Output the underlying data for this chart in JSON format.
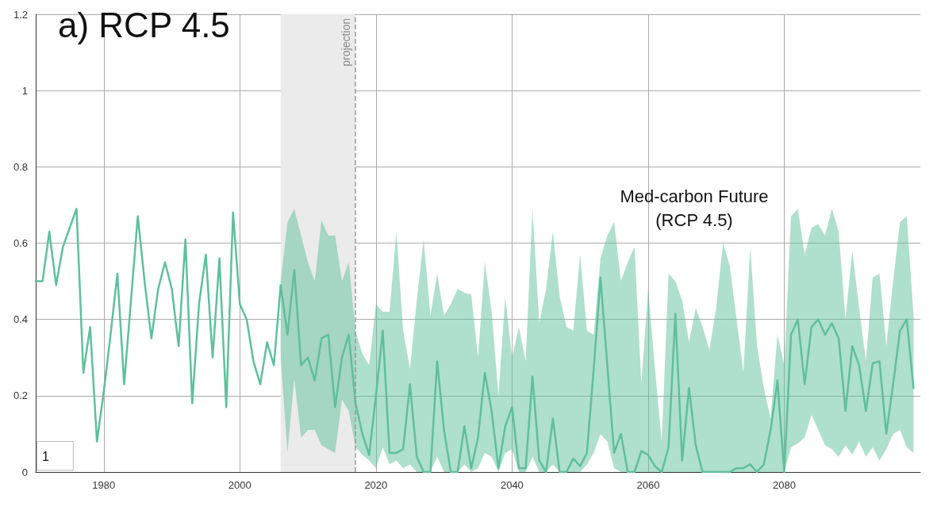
{
  "chart_data": {
    "type": "line",
    "title": "a) RCP 4.5",
    "annotations": [
      "Med-carbon Future\n(RCP 4.5)",
      "1"
    ],
    "x": [
      1970,
      1971,
      1972,
      1973,
      1974,
      1975,
      1976,
      1977,
      1978,
      1979,
      1980,
      1981,
      1982,
      1983,
      1984,
      1985,
      1986,
      1987,
      1988,
      1989,
      1990,
      1991,
      1992,
      1993,
      1994,
      1995,
      1996,
      1997,
      1998,
      1999,
      2000,
      2001,
      2002,
      2003,
      2004,
      2005,
      2006,
      2007,
      2008,
      2009,
      2010,
      2011,
      2012,
      2013,
      2014,
      2015,
      2016,
      2017,
      2018,
      2019,
      2020,
      2021,
      2022,
      2023,
      2024,
      2025,
      2026,
      2027,
      2028,
      2029,
      2030,
      2031,
      2032,
      2033,
      2034,
      2035,
      2036,
      2037,
      2038,
      2039,
      2040,
      2041,
      2042,
      2043,
      2044,
      2045,
      2046,
      2047,
      2048,
      2049,
      2050,
      2051,
      2052,
      2053,
      2054,
      2055,
      2056,
      2057,
      2058,
      2059,
      2060,
      2061,
      2062,
      2063,
      2064,
      2065,
      2066,
      2067,
      2068,
      2069,
      2070,
      2071,
      2072,
      2073,
      2074,
      2075,
      2076,
      2077,
      2078,
      2079,
      2080,
      2081,
      2082,
      2083,
      2084,
      2085,
      2086,
      2087,
      2088,
      2089,
      2090,
      2091,
      2092,
      2093,
      2094,
      2095,
      2096,
      2097,
      2098,
      2099
    ],
    "series": [
      {
        "color": "#5fbf9c",
        "values": [
          0.5,
          0.5,
          0.63,
          0.49,
          0.59,
          0.64,
          0.69,
          0.26,
          0.38,
          0.08,
          0.21,
          0.36,
          0.52,
          0.23,
          0.45,
          0.67,
          0.5,
          0.35,
          0.48,
          0.55,
          0.48,
          0.33,
          0.61,
          0.18,
          0.44,
          0.57,
          0.3,
          0.56,
          0.17,
          0.68,
          0.44,
          0.4,
          0.29,
          0.23,
          0.34,
          0.28,
          0.49,
          0.36,
          0.53,
          0.28,
          0.3,
          0.24,
          0.35,
          0.36,
          0.17,
          0.3,
          0.36,
          0.18,
          0.1,
          0.045,
          0.2,
          0.37,
          0.05,
          0.05,
          0.06,
          0.23,
          0.04,
          0,
          0,
          0.29,
          0.11,
          0,
          0,
          0.12,
          0.01,
          0.09,
          0.26,
          0.16,
          0.01,
          0.12,
          0.17,
          0.01,
          0.01,
          0.25,
          0.03,
          0,
          0.14,
          0,
          0,
          0.035,
          0.015,
          0.05,
          0.27,
          0.51,
          0.28,
          0.05,
          0.1,
          0,
          0,
          0.055,
          0.045,
          0.015,
          0,
          0.065,
          0.415,
          0.03,
          0.22,
          0.07,
          0,
          0,
          0,
          0,
          0,
          0.01,
          0.01,
          0.02,
          0,
          0.02,
          0.11,
          0.24,
          0,
          0.36,
          0.4,
          0.23,
          0.38,
          0.4,
          0.36,
          0.39,
          0.35,
          0.16,
          0.33,
          0.28,
          0.16,
          0.285,
          0.29,
          0.1,
          0.23,
          0.37,
          0.4,
          0.22
        ],
        "upper": [
          null,
          null,
          null,
          null,
          null,
          null,
          null,
          null,
          null,
          null,
          null,
          null,
          null,
          null,
          null,
          null,
          null,
          null,
          null,
          null,
          null,
          null,
          null,
          null,
          null,
          null,
          null,
          null,
          null,
          null,
          null,
          null,
          null,
          null,
          null,
          null,
          0.5,
          0.655,
          0.69,
          0.62,
          0.55,
          0.5,
          0.66,
          0.62,
          0.62,
          0.5,
          0.55,
          0.37,
          0.31,
          0.28,
          0.44,
          0.42,
          0.42,
          0.63,
          0.37,
          0.27,
          0.45,
          0.61,
          0.41,
          0.52,
          0.41,
          0.44,
          0.48,
          0.47,
          0.465,
          0.3,
          0.55,
          0.42,
          0.2,
          0.46,
          0.3,
          0.38,
          0.29,
          0.69,
          0.39,
          0.48,
          0.63,
          0.46,
          0.38,
          0.37,
          0.57,
          0.37,
          0.36,
          0.56,
          0.62,
          0.655,
          0.5,
          0.55,
          0.59,
          0.23,
          0.48,
          0.27,
          0.08,
          0.52,
          0.5,
          0.45,
          0.34,
          0.43,
          0.38,
          0.32,
          0.43,
          0.6,
          0.54,
          0.4,
          0.26,
          0.59,
          0.33,
          0.22,
          0.14,
          0.36,
          0.28,
          0.67,
          0.69,
          0.57,
          0.64,
          0.65,
          0.62,
          0.69,
          0.63,
          0.4,
          0.58,
          0.43,
          0.29,
          0.51,
          0.52,
          0.33,
          0.5,
          0.655,
          0.67,
          0.41
        ],
        "lower": [
          null,
          null,
          null,
          null,
          null,
          null,
          null,
          null,
          null,
          null,
          null,
          null,
          null,
          null,
          null,
          null,
          null,
          null,
          null,
          null,
          null,
          null,
          null,
          null,
          null,
          null,
          null,
          null,
          null,
          null,
          null,
          null,
          null,
          null,
          null,
          null,
          0.3,
          0.05,
          0.245,
          0.09,
          0.11,
          0.11,
          0.07,
          0.06,
          0.05,
          0.19,
          0.16,
          0.065,
          0.045,
          0.03,
          0.01,
          0.065,
          0.02,
          0.03,
          0.01,
          0.02,
          0,
          0,
          0,
          0.04,
          0,
          0,
          0,
          0.02,
          0,
          0.01,
          0.05,
          0.04,
          0,
          0.05,
          0.06,
          0,
          0,
          0.04,
          0,
          0,
          0.02,
          0,
          0,
          0,
          0,
          0.02,
          0.05,
          0.1,
          0.08,
          0.01,
          0,
          0,
          0,
          0,
          0,
          0,
          0,
          0,
          0,
          0,
          0,
          0,
          0,
          0,
          0,
          0,
          0,
          0,
          0,
          0,
          0,
          0,
          0,
          0,
          0,
          0.065,
          0.075,
          0.09,
          0.15,
          0.11,
          0.07,
          0.06,
          0.04,
          0.07,
          0.045,
          0.08,
          0.04,
          0.065,
          0.03,
          0.06,
          0.1,
          0.11,
          0.065,
          0.05
        ]
      }
    ],
    "xlim": [
      1970,
      2100
    ],
    "xticks": [
      1980,
      2000,
      2020,
      2040,
      2060,
      2080
    ],
    "ylim": [
      0,
      1.2
    ],
    "yticks": [
      0,
      0.2,
      0.4,
      0.6,
      0.8,
      1,
      1.2
    ],
    "grid": true,
    "marker": "none",
    "line_style": "solid",
    "bands": [
      {
        "axis": "x",
        "from": 2006,
        "to": 2017,
        "color": "#ebebeb"
      }
    ],
    "ref_lines": [
      {
        "axis": "x",
        "value": 2017,
        "label": "projection",
        "line_style": "dashed",
        "color": "#999999"
      }
    ]
  }
}
